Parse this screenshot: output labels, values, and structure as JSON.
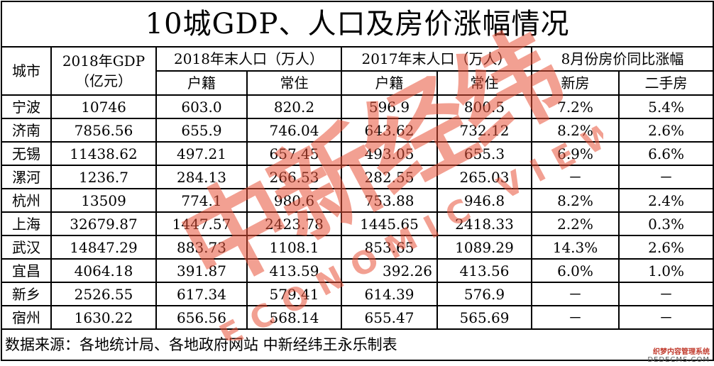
{
  "title": "10城GDP、人口及房价涨幅情况",
  "headers": {
    "city": "城市",
    "gdp_line1": "2018年GDP",
    "gdp_line2": "（亿元）",
    "pop2018": "2018年末人口（万人）",
    "pop2017": "2017年末人口（万人）",
    "price": "8月份房价同比涨幅",
    "huji": "户籍",
    "changzhu": "常住",
    "new_house": "新房",
    "second_house": "二手房"
  },
  "rows": [
    {
      "city": "宁波",
      "gdp": "10746",
      "h18": "603.0",
      "c18": "820.2",
      "h17": "596.9",
      "c17": "800.5",
      "new": "7.2%",
      "second": "5.4%"
    },
    {
      "city": "济南",
      "gdp": "7856.56",
      "h18": "655.9",
      "c18": "746.04",
      "h17": "643.62",
      "c17": "732.12",
      "new": "8.2%",
      "second": "2.6%"
    },
    {
      "city": "无锡",
      "gdp": "11438.62",
      "h18": "497.21",
      "c18": "657.45",
      "h17": "493.05",
      "c17": "655.3",
      "new": "6.9%",
      "second": "6.6%"
    },
    {
      "city": "漯河",
      "gdp": "1236.7",
      "h18": "284.13",
      "c18": "266.53",
      "h17": "282.55",
      "c17": "265.03",
      "new": "－",
      "second": "－"
    },
    {
      "city": "杭州",
      "gdp": "13509",
      "h18": "774.1",
      "c18": "980.6",
      "h17": "753.88",
      "c17": "946.8",
      "new": "8.2%",
      "second": "2.4%"
    },
    {
      "city": "上海",
      "gdp": "32679.87",
      "h18": "1447.57",
      "c18": "2423.78",
      "h17": "1445.65",
      "c17": "2418.33",
      "new": "2.2%",
      "second": "0.3%"
    },
    {
      "city": "武汉",
      "gdp": "14847.29",
      "h18": "883.73",
      "c18": "1108.1",
      "h17": "853.65",
      "c17": "1089.29",
      "new": "14.3%",
      "second": "2.6%"
    },
    {
      "city": "宜昌",
      "gdp": "4064.18",
      "h18": "391.87",
      "c18": "413.59",
      "h17": "392.26",
      "c17": "413.56",
      "new": "6.0%",
      "second": "1.0%"
    },
    {
      "city": "新乡",
      "gdp": "2526.55",
      "h18": "617.34",
      "c18": "579.41",
      "h17": "614.39",
      "c17": "576.9",
      "new": "－",
      "second": "－"
    },
    {
      "city": "宿州",
      "gdp": "1630.22",
      "h18": "656.56",
      "c18": "568.14",
      "h17": "655.47",
      "c17": "565.69",
      "new": "－",
      "second": "－"
    }
  ],
  "footer": "数据来源：各地统计局、各地政府网站  中新经纬王永乐制表",
  "watermark": {
    "cn": "中新经纬",
    "en": "ECONOMIC VIEW",
    "color": "#e8533a"
  },
  "corner_mark": {
    "cn": "织梦内容管理系统",
    "en": "DEDECMS.COM"
  }
}
